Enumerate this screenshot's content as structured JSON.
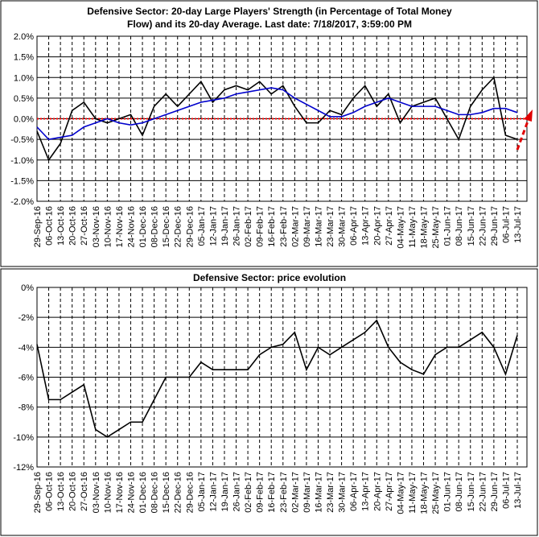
{
  "chart_data": [
    {
      "type": "line",
      "title": [
        "Defensive Sector: 20-day Large Players' Strength (in Percentage of Total Money",
        "Flow) and its 20-day Average. Last date: 7/18/2017, 3:59:00 PM"
      ],
      "categories": [
        "29-Sep-16",
        "06-Oct-16",
        "13-Oct-16",
        "20-Oct-16",
        "27-Oct-16",
        "03-Nov-16",
        "10-Nov-16",
        "17-Nov-16",
        "24-Nov-16",
        "01-Dec-16",
        "08-Dec-16",
        "15-Dec-16",
        "22-Dec-16",
        "29-Dec-16",
        "05-Jan-17",
        "12-Jan-17",
        "19-Jan-17",
        "26-Jan-17",
        "02-Feb-17",
        "09-Feb-17",
        "16-Feb-17",
        "23-Feb-17",
        "02-Mar-17",
        "09-Mar-17",
        "16-Mar-17",
        "23-Mar-17",
        "30-Mar-17",
        "06-Apr-17",
        "13-Apr-17",
        "20-Apr-17",
        "27-Apr-17",
        "04-May-17",
        "11-May-17",
        "18-May-17",
        "25-May-17",
        "01-Jun-17",
        "08-Jun-17",
        "15-Jun-17",
        "22-Jun-17",
        "29-Jun-17",
        "06-Jul-17",
        "13-Jul-17"
      ],
      "series": [
        {
          "color": "#000000",
          "values": [
            -0.3,
            -1.0,
            -0.6,
            0.2,
            0.4,
            0.0,
            -0.1,
            0.0,
            0.1,
            -0.4,
            0.3,
            0.6,
            0.3,
            0.6,
            0.9,
            0.4,
            0.7,
            0.8,
            0.7,
            0.9,
            0.6,
            0.8,
            0.3,
            -0.1,
            -0.1,
            0.2,
            0.1,
            0.5,
            0.8,
            0.3,
            0.6,
            -0.1,
            0.3,
            0.4,
            0.5,
            0.0,
            -0.5,
            0.3,
            0.7,
            1.0,
            -0.4,
            -0.5
          ]
        },
        {
          "color": "#0000cc",
          "values": [
            -0.2,
            -0.5,
            -0.45,
            -0.4,
            -0.2,
            -0.1,
            0.0,
            -0.1,
            -0.15,
            -0.1,
            0.0,
            0.1,
            0.2,
            0.3,
            0.4,
            0.45,
            0.5,
            0.6,
            0.65,
            0.7,
            0.75,
            0.7,
            0.5,
            0.35,
            0.2,
            0.05,
            0.05,
            0.15,
            0.3,
            0.4,
            0.5,
            0.4,
            0.3,
            0.3,
            0.3,
            0.2,
            0.1,
            0.1,
            0.15,
            0.25,
            0.25,
            0.15
          ]
        }
      ],
      "reference_line": {
        "value": 0,
        "color": "#ff0000"
      },
      "ylim": [
        -2,
        2
      ],
      "yticks": [
        {
          "value": -2,
          "label": "-2.0%"
        },
        {
          "value": -1.5,
          "label": "-1.5%"
        },
        {
          "value": -1,
          "label": "-1.0%"
        },
        {
          "value": -0.5,
          "label": "-0.5%"
        },
        {
          "value": 0,
          "label": "0.0%"
        },
        {
          "value": 0.5,
          "label": "0.5%"
        },
        {
          "value": 1,
          "label": "1.0%"
        },
        {
          "value": 1.5,
          "label": "1.5%"
        },
        {
          "value": 2,
          "label": "2.0%"
        }
      ],
      "grid": true
    },
    {
      "type": "line",
      "title": [
        "Defensive Sector: price evolution"
      ],
      "categories": [
        "29-Sep-16",
        "06-Oct-16",
        "13-Oct-16",
        "20-Oct-16",
        "27-Oct-16",
        "03-Nov-16",
        "10-Nov-16",
        "17-Nov-16",
        "24-Nov-16",
        "01-Dec-16",
        "08-Dec-16",
        "15-Dec-16",
        "22-Dec-16",
        "29-Dec-16",
        "05-Jan-17",
        "12-Jan-17",
        "19-Jan-17",
        "26-Jan-17",
        "02-Feb-17",
        "09-Feb-17",
        "16-Feb-17",
        "23-Feb-17",
        "02-Mar-17",
        "09-Mar-17",
        "16-Mar-17",
        "23-Mar-17",
        "30-Mar-17",
        "06-Apr-17",
        "13-Apr-17",
        "20-Apr-17",
        "27-Apr-17",
        "04-May-17",
        "11-May-17",
        "18-May-17",
        "25-May-17",
        "01-Jun-17",
        "08-Jun-17",
        "15-Jun-17",
        "22-Jun-17",
        "29-Jun-17",
        "06-Jul-17",
        "13-Jul-17"
      ],
      "series": [
        {
          "color": "#000000",
          "values": [
            -3.8,
            -7.5,
            -7.5,
            -7.0,
            -6.5,
            -9.5,
            -10.0,
            -9.5,
            -9.0,
            -9.0,
            -7.5,
            -6.0,
            -6.0,
            -6.0,
            -5.0,
            -5.5,
            -5.5,
            -5.5,
            -5.5,
            -4.5,
            -4.0,
            -3.8,
            -3.0,
            -5.5,
            -4.0,
            -4.5,
            -4.0,
            -3.5,
            -3.0,
            -2.2,
            -4.0,
            -5.0,
            -5.5,
            -5.8,
            -4.5,
            -4.0,
            -4.0,
            -3.5,
            -3.0,
            -4.0,
            -5.8,
            -3.2
          ]
        }
      ],
      "ylim": [
        -12,
        0
      ],
      "yticks": [
        {
          "value": -12,
          "label": "-12%"
        },
        {
          "value": -10,
          "label": "-10%"
        },
        {
          "value": -8,
          "label": "-8%"
        },
        {
          "value": -6,
          "label": "-6%"
        },
        {
          "value": -4,
          "label": "-4%"
        },
        {
          "value": -2,
          "label": "-2%"
        },
        {
          "value": 0,
          "label": "0%"
        }
      ],
      "grid": true
    }
  ]
}
